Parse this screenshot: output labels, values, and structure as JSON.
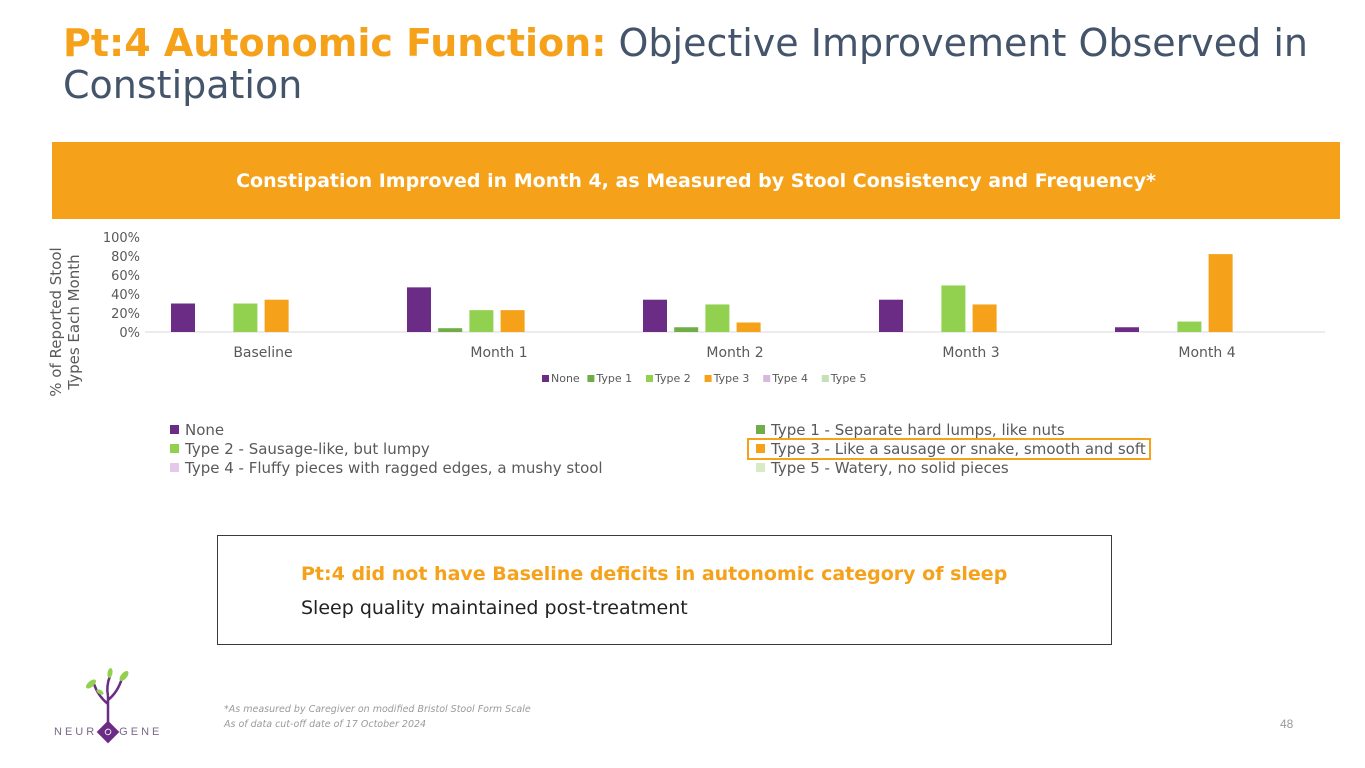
{
  "title": {
    "highlight": "Pt:4 Autonomic Function:",
    "rest": " Objective Improvement Observed in Constipation"
  },
  "banner": {
    "text": "Constipation Improved in Month 4, as Measured by Stool Consistency and Frequency*"
  },
  "chart_data": {
    "type": "bar",
    "categories": [
      "Baseline",
      "Month 1",
      "Month 2",
      "Month 3",
      "Month 4"
    ],
    "series": [
      {
        "name": "None",
        "color": "#6a2c84",
        "values": [
          30,
          47,
          34,
          34,
          5
        ]
      },
      {
        "name": "Type 1",
        "color": "#70ad47",
        "values": [
          0,
          4,
          5,
          0,
          0
        ]
      },
      {
        "name": "Type 2",
        "color": "#92d050",
        "values": [
          30,
          23,
          29,
          49,
          11
        ]
      },
      {
        "name": "Type 3",
        "color": "#f5a11a",
        "values": [
          34,
          23,
          10,
          29,
          82
        ]
      },
      {
        "name": "Type 4",
        "color": "#d9b8e0",
        "values": [
          0,
          0,
          0,
          0,
          0
        ]
      },
      {
        "name": "Type 5",
        "color": "#c5e0b4",
        "values": [
          0,
          0,
          0,
          0,
          0
        ]
      }
    ],
    "ylabel_line1": "% of Reported Stool",
    "ylabel_line2": "Types Each Month",
    "ylim": [
      0,
      100
    ],
    "yticks": [
      "0%",
      "20%",
      "40%",
      "60%",
      "80%",
      "100%"
    ],
    "gridlines": false,
    "legend_position": "bottom"
  },
  "legend2": {
    "rows": [
      [
        {
          "label": "None",
          "color": "#6a2c84"
        },
        {
          "label": "Type 1 - Separate hard lumps, like nuts",
          "color": "#70ad47"
        }
      ],
      [
        {
          "label": "Type 2 - Sausage-like, but lumpy",
          "color": "#92d050"
        },
        {
          "label": "Type 3 - Like a sausage or snake, smooth and soft",
          "color": "#f5a11a",
          "highlighted": true
        }
      ],
      [
        {
          "label": "Type 4 - Fluffy pieces with ragged edges, a mushy stool",
          "color": "#e6c8ec"
        },
        {
          "label": "Type 5 - Watery, no solid pieces",
          "color": "#d6ebc6"
        }
      ]
    ]
  },
  "info": {
    "line1": "Pt:4 did not have Baseline deficits in autonomic category of sleep",
    "line2": "Sleep quality maintained post-treatment"
  },
  "footnotes": {
    "line1": "*As measured by Caregiver on modified Bristol Stool Form Scale",
    "line2": "As of data cut-off date of 17 October 2024"
  },
  "page_number": "48",
  "logo": {
    "text_left": "NEUR",
    "text_mid": "O",
    "text_right": "GENE",
    "leaf_color": "#92d050",
    "stem_color": "#6a2c84"
  }
}
